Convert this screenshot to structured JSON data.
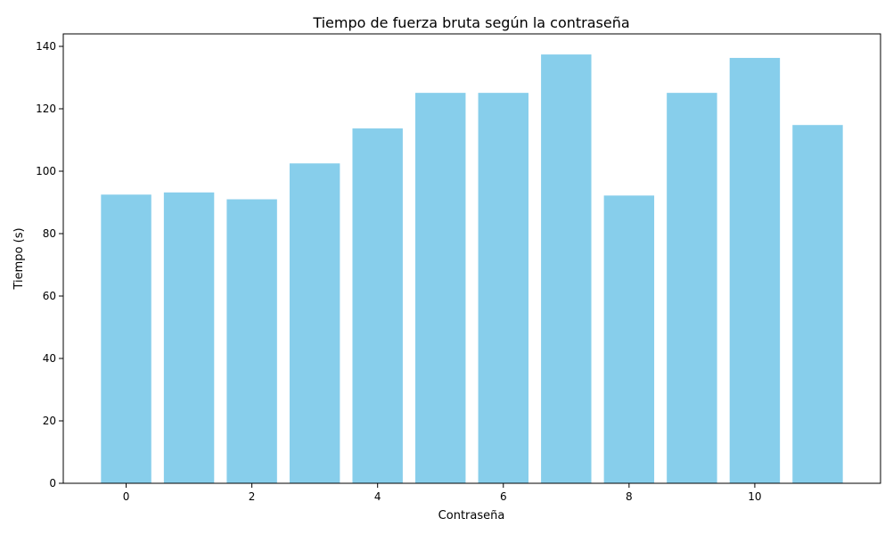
{
  "chart_data": {
    "type": "bar",
    "title": "Tiempo de fuerza bruta según la contraseña",
    "xlabel": "Contraseña",
    "ylabel": "Tiempo (s)",
    "x": [
      0,
      1,
      2,
      3,
      4,
      5,
      6,
      7,
      8,
      9,
      10,
      11
    ],
    "values": [
      92.5,
      93.2,
      91.0,
      102.5,
      113.7,
      125.1,
      125.1,
      137.4,
      92.2,
      125.1,
      136.3,
      114.8
    ],
    "bar_color": "#87CEEB",
    "xlim": [
      -1,
      12
    ],
    "ylim": [
      0,
      144
    ],
    "xticks": [
      0,
      2,
      4,
      6,
      8,
      10
    ],
    "yticks": [
      0,
      20,
      40,
      60,
      80,
      100,
      120,
      140
    ],
    "grid": false,
    "legend": "none"
  }
}
